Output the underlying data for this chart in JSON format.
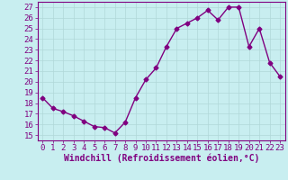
{
  "x": [
    0,
    1,
    2,
    3,
    4,
    5,
    6,
    7,
    8,
    9,
    10,
    11,
    12,
    13,
    14,
    15,
    16,
    17,
    18,
    19,
    20,
    21,
    22,
    23
  ],
  "y": [
    18.5,
    17.5,
    17.2,
    16.8,
    16.3,
    15.8,
    15.7,
    15.2,
    16.2,
    18.5,
    20.2,
    21.3,
    23.3,
    25.0,
    25.5,
    26.0,
    26.7,
    25.8,
    27.0,
    27.0,
    23.3,
    25.0,
    21.8,
    20.5
  ],
  "line_color": "#800080",
  "marker": "D",
  "marker_size": 2.5,
  "bg_color": "#c8eef0",
  "grid_color": "#b0d8d8",
  "xlabel": "Windchill (Refroidissement éolien,°C)",
  "ylabel_ticks": [
    15,
    16,
    17,
    18,
    19,
    20,
    21,
    22,
    23,
    24,
    25,
    26,
    27
  ],
  "ylim": [
    14.5,
    27.5
  ],
  "xlim": [
    -0.5,
    23.5
  ],
  "xlabel_color": "#800080",
  "tick_color": "#800080",
  "font_size": 6.5
}
